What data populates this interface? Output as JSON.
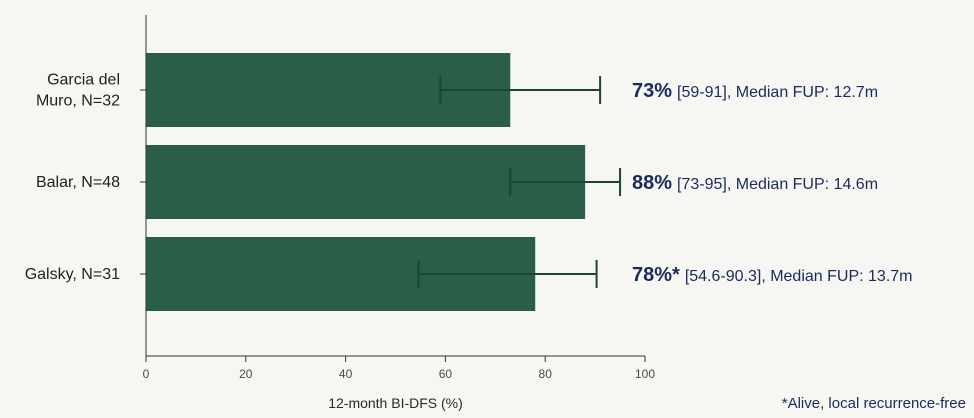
{
  "chart_data": {
    "type": "bar",
    "orientation": "horizontal",
    "categories": [
      [
        "Garcia del",
        "Muro, N=32"
      ],
      [
        "Balar, N=48"
      ],
      [
        "Galsky, N=31"
      ]
    ],
    "values": [
      73,
      88,
      78
    ],
    "ci_low": [
      59,
      73,
      54.6
    ],
    "ci_high": [
      91,
      95,
      90.3
    ],
    "value_labels": [
      "73%",
      "88%",
      "78%*"
    ],
    "detail_labels": [
      "[59-91], Median FUP: 12.7m",
      "[73-95], Median FUP: 14.6m",
      "[54.6-90.3], Median FUP: 13.7m"
    ],
    "xlabel": "12-month BI-DFS (%)",
    "xlim": [
      0,
      100
    ],
    "xticks": [
      0,
      20,
      40,
      60,
      80,
      100
    ],
    "grid": false,
    "bar_color": "#2a5e48",
    "errorbar_color": "#1d4530",
    "label_color": "#1b2a5c",
    "footnote": "*Alive, local recurrence-free"
  }
}
